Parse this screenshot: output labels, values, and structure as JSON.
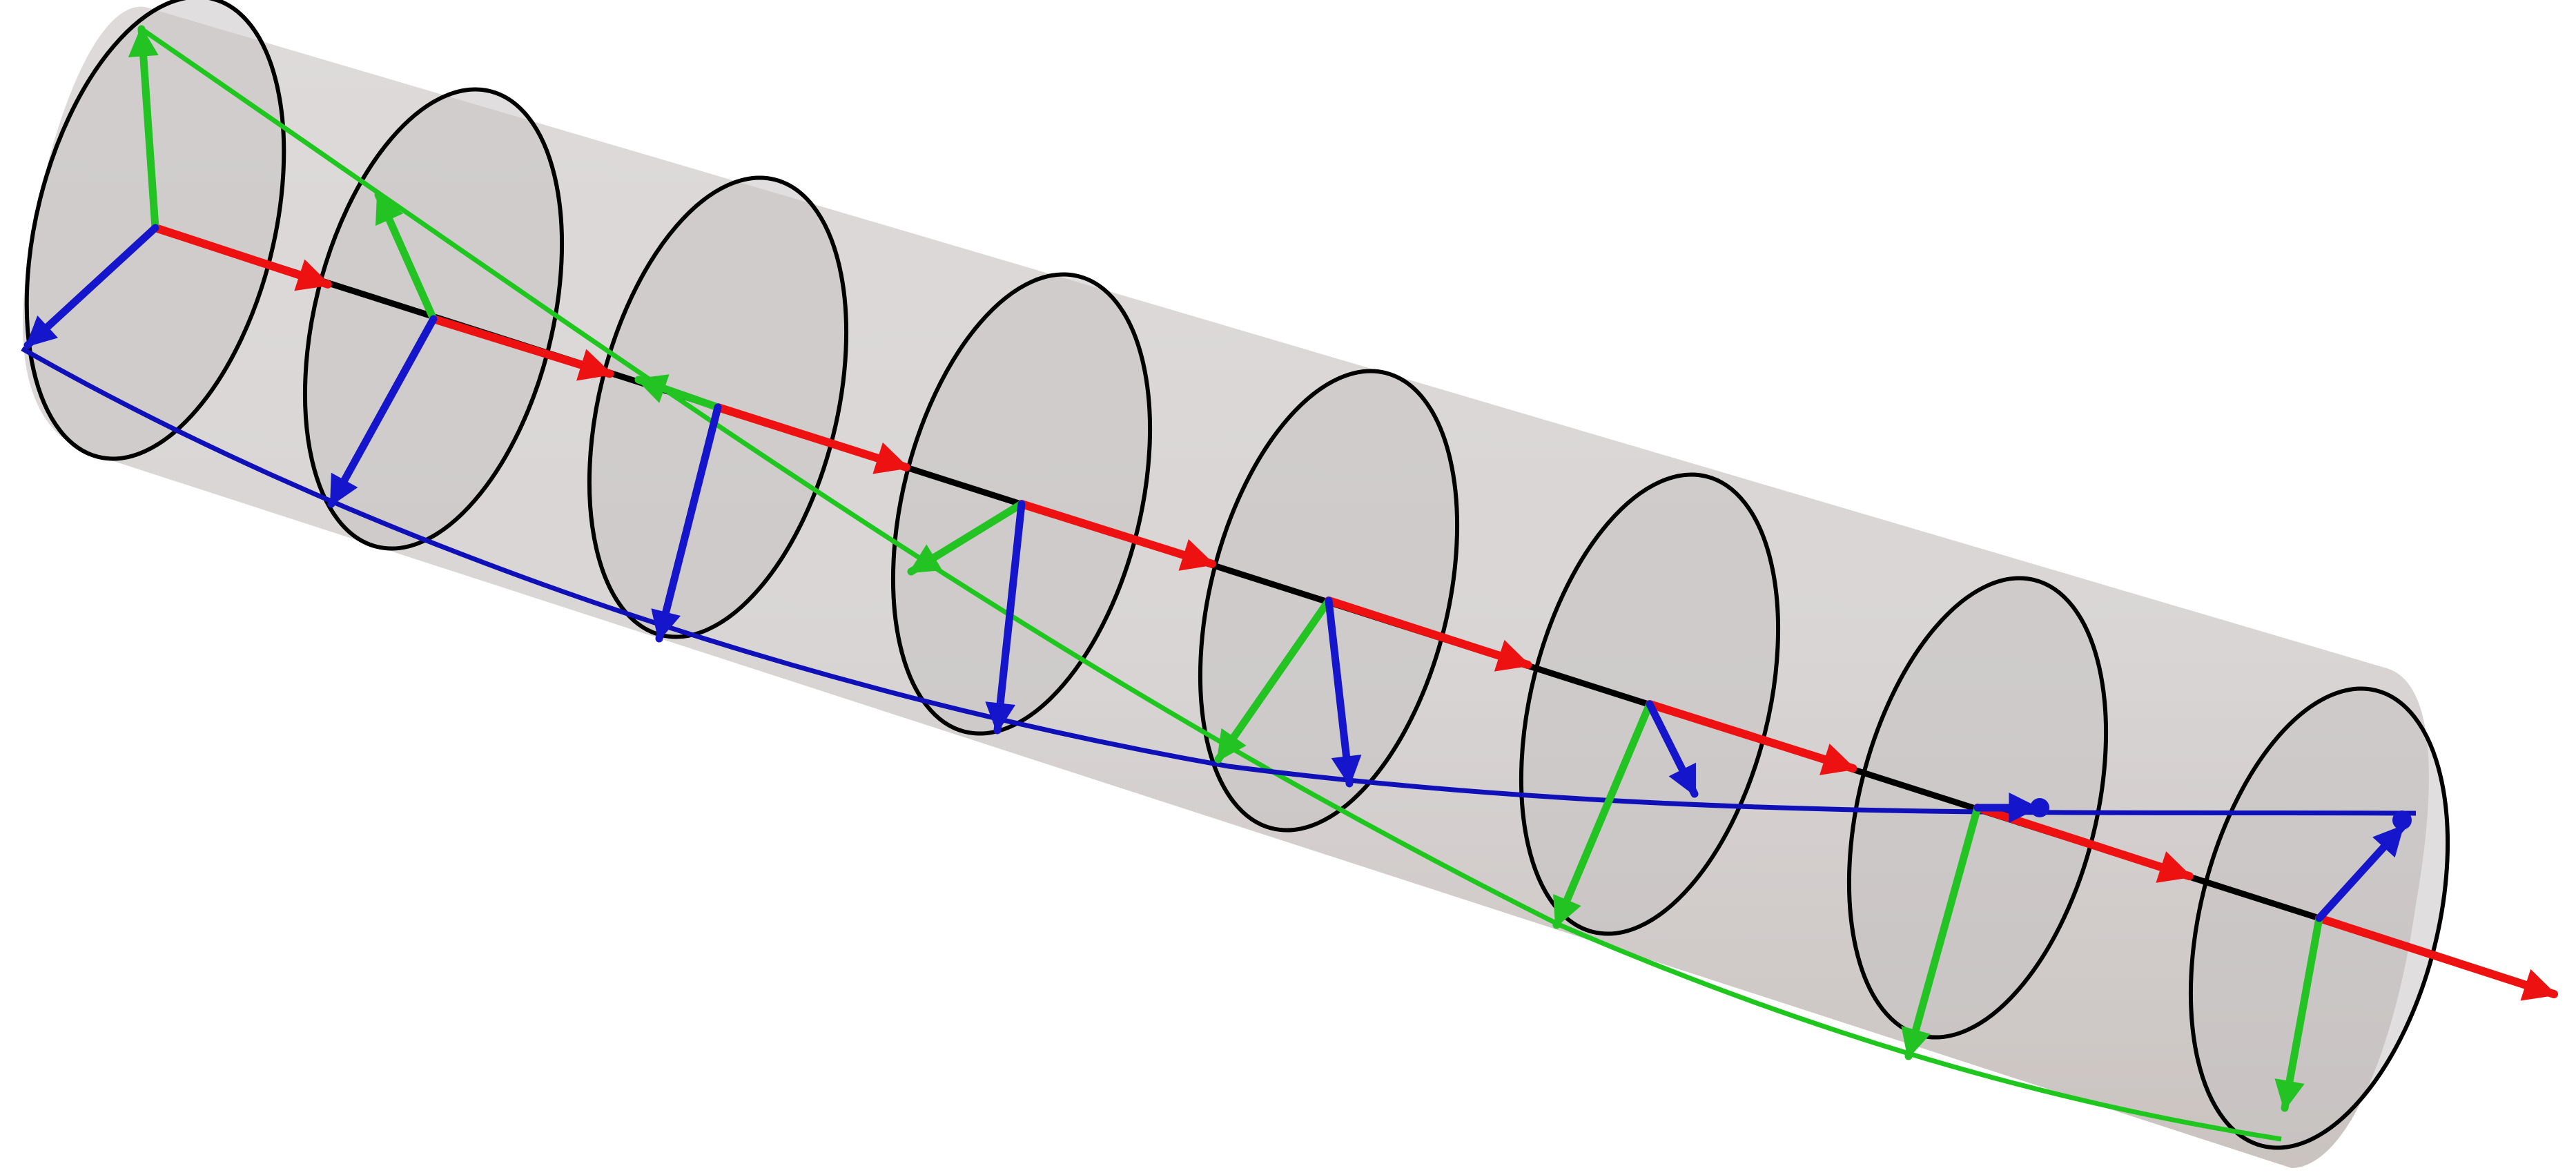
{
  "figure": {
    "description_none": "",
    "colors": {
      "tube_fill": "#d3cfcf",
      "tube_shadow": "#c9c2c0",
      "disk_fill": "#c7c2c2",
      "disk_edge": "#000000",
      "axis_line": "#000000",
      "tangent": "#ee1111",
      "normal": "#22c322",
      "binormal": "#1515cc",
      "normal_curve": "#1ec61e",
      "binormal_curve": "#1010b8"
    },
    "frame_count": 8,
    "frames": [
      {
        "index": 1,
        "tangent_visible": true,
        "normal": "up",
        "binormal": "down-left"
      },
      {
        "index": 2,
        "tangent_visible": true,
        "normal": "up-left",
        "binormal": "down"
      },
      {
        "index": 3,
        "tangent_visible": true,
        "normal": "left",
        "binormal": "down"
      },
      {
        "index": 4,
        "tangent_visible": true,
        "normal": "down-left",
        "binormal": "down"
      },
      {
        "index": 5,
        "tangent_visible": true,
        "normal": "down-left",
        "binormal": "down"
      },
      {
        "index": 6,
        "tangent_visible": true,
        "normal": "down",
        "binormal": "short"
      },
      {
        "index": 7,
        "tangent_visible": true,
        "normal": "down",
        "binormal": "into-page"
      },
      {
        "index": 8,
        "tangent_visible": true,
        "normal": "down",
        "binormal": "up-right"
      }
    ],
    "icons": [
      "tube-surface",
      "cross-section-disk",
      "frame-arrow"
    ]
  }
}
